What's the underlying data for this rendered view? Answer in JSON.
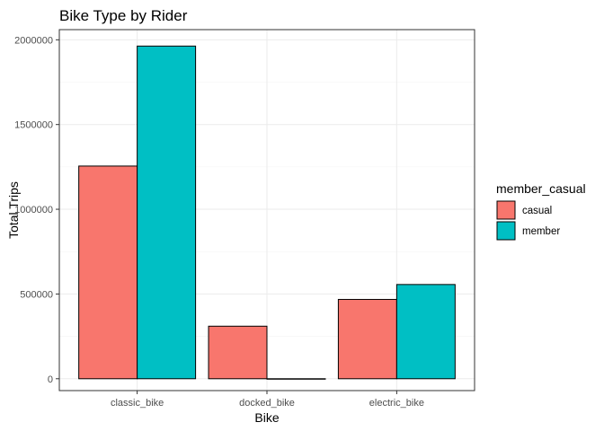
{
  "chart_data": {
    "type": "bar",
    "title": "Bike Type by Rider",
    "xlabel": "Bike",
    "ylabel": "Total Trips",
    "categories": [
      "classic_bike",
      "docked_bike",
      "electric_bike"
    ],
    "series": [
      {
        "name": "casual",
        "color": "#F8766D",
        "values": [
          1255000,
          310000,
          468000
        ]
      },
      {
        "name": "member",
        "color": "#00BFC4",
        "values": [
          1963000,
          0,
          556000
        ]
      }
    ],
    "ylim": [
      -70000,
      2060000
    ],
    "yticks": [
      0,
      500000,
      1000000,
      1500000,
      2000000
    ],
    "ytick_labels": [
      "0",
      "500000",
      "1000000",
      "1500000",
      "2000000"
    ],
    "grid": true,
    "legend": {
      "title": "member_casual",
      "position": "right"
    }
  }
}
